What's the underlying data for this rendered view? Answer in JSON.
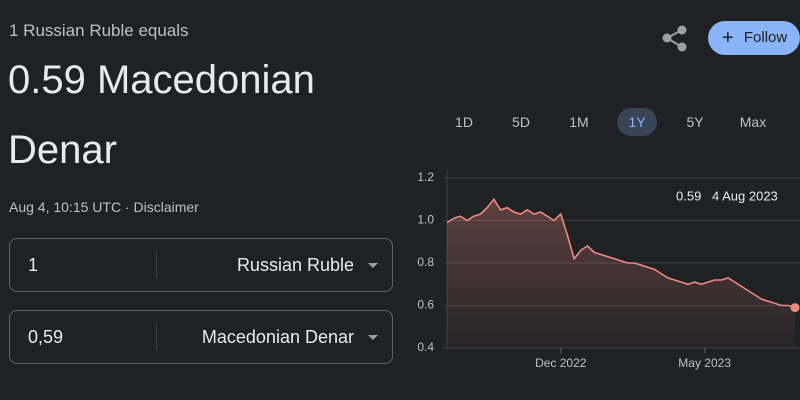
{
  "header": {
    "subtitle": "1 Russian Ruble equals",
    "title_line1": "0.59 Macedonian",
    "title_line2": "Denar",
    "timestamp": "Aug 4, 10:15 UTC · Disclaimer",
    "follow": "Follow"
  },
  "converter": {
    "from_amount": "1",
    "from_currency": "Russian Ruble",
    "to_amount": "0,59",
    "to_currency": "Macedonian Denar"
  },
  "ranges": [
    "1D",
    "5D",
    "1M",
    "1Y",
    "5Y",
    "Max"
  ],
  "selected_range": 3,
  "chart_data": {
    "type": "area",
    "color": "#ee8a7f",
    "annotation": {
      "value": "0.59",
      "date": "4 Aug 2023"
    },
    "values": [
      0.99,
      1.01,
      1.02,
      1.0,
      1.02,
      1.03,
      1.06,
      1.1,
      1.05,
      1.06,
      1.04,
      1.03,
      1.05,
      1.03,
      1.04,
      1.02,
      1.0,
      1.03,
      0.93,
      0.82,
      0.86,
      0.88,
      0.85,
      0.84,
      0.83,
      0.82,
      0.81,
      0.8,
      0.8,
      0.79,
      0.78,
      0.77,
      0.75,
      0.73,
      0.72,
      0.71,
      0.7,
      0.71,
      0.7,
      0.71,
      0.72,
      0.72,
      0.73,
      0.71,
      0.69,
      0.67,
      0.65,
      0.63,
      0.62,
      0.61,
      0.6,
      0.6,
      0.59
    ],
    "xlim": [
      0,
      52
    ],
    "xticks": [
      {
        "value": 17,
        "label": "Dec 2022"
      },
      {
        "value": 38.5,
        "label": "May 2023"
      }
    ],
    "ylim": [
      0.4,
      1.2
    ],
    "yticks": [
      0.4,
      0.6,
      0.8,
      {
        "value": 1.0,
        "label": "1.0"
      },
      1.2
    ],
    "grid": true
  }
}
